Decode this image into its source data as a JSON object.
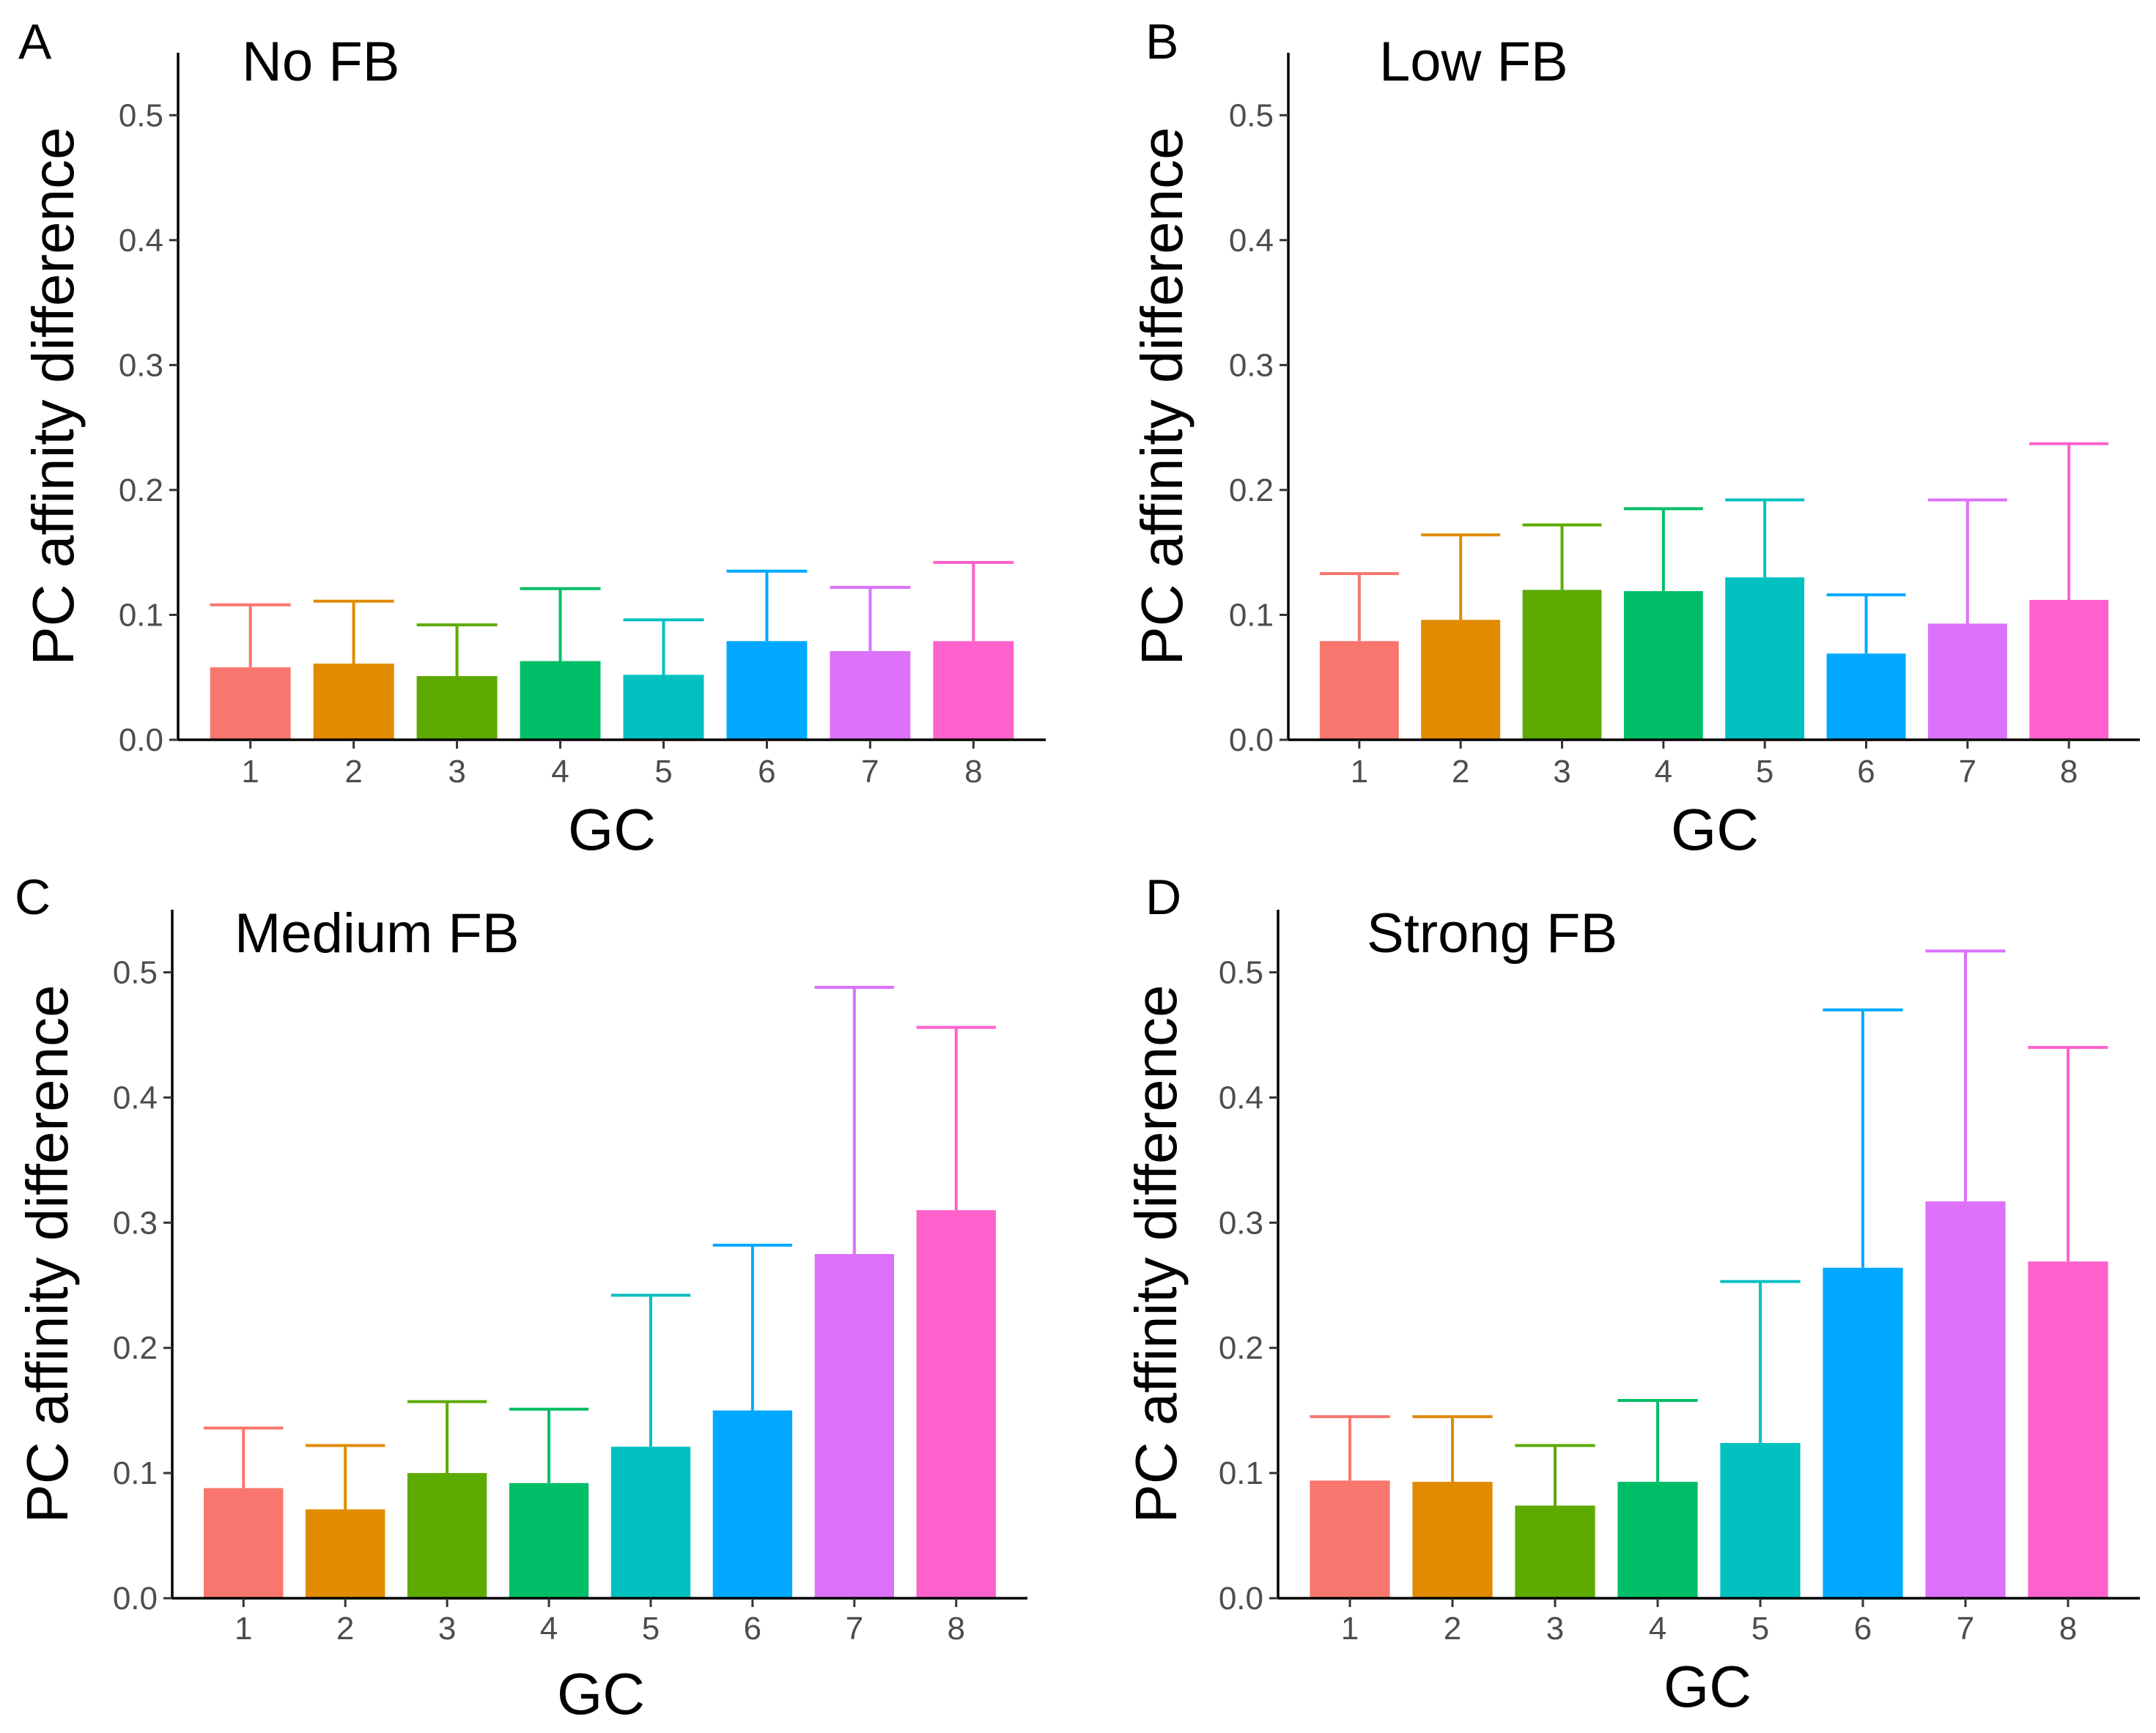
{
  "figure": {
    "caption_hidden": ""
  },
  "chart_data": [
    {
      "type": "bar",
      "panel_letter": "A",
      "title": "No FB",
      "xlabel": "GC",
      "ylabel": "PC affinity difference",
      "categories": [
        "1",
        "2",
        "3",
        "4",
        "5",
        "6",
        "7",
        "8"
      ],
      "values": [
        0.058,
        0.061,
        0.051,
        0.063,
        0.052,
        0.079,
        0.071,
        0.079
      ],
      "error_upper": [
        0.108,
        0.111,
        0.092,
        0.121,
        0.096,
        0.135,
        0.122,
        0.142
      ],
      "ylim": [
        0,
        0.55
      ],
      "yticks": [
        0.0,
        0.1,
        0.2,
        0.3,
        0.4,
        0.5
      ],
      "ytick_labels": [
        "0.0",
        "0.1",
        "0.2",
        "0.3",
        "0.4",
        "0.5"
      ]
    },
    {
      "type": "bar",
      "panel_letter": "B",
      "title": "Low FB",
      "xlabel": "GC",
      "ylabel": "PC affinity difference",
      "categories": [
        "1",
        "2",
        "3",
        "4",
        "5",
        "6",
        "7",
        "8"
      ],
      "values": [
        0.079,
        0.096,
        0.12,
        0.119,
        0.13,
        0.069,
        0.093,
        0.112
      ],
      "error_upper": [
        0.133,
        0.164,
        0.172,
        0.185,
        0.192,
        0.116,
        0.192,
        0.237
      ],
      "ylim": [
        0,
        0.55
      ],
      "yticks": [
        0.0,
        0.1,
        0.2,
        0.3,
        0.4,
        0.5
      ],
      "ytick_labels": [
        "0.0",
        "0.1",
        "0.2",
        "0.3",
        "0.4",
        "0.5"
      ]
    },
    {
      "type": "bar",
      "panel_letter": "C",
      "title": "Medium FB",
      "xlabel": "GC",
      "ylabel": "PC affinity difference",
      "categories": [
        "1",
        "2",
        "3",
        "4",
        "5",
        "6",
        "7",
        "8"
      ],
      "values": [
        0.088,
        0.071,
        0.1,
        0.092,
        0.121,
        0.15,
        0.275,
        0.31
      ],
      "error_upper": [
        0.136,
        0.122,
        0.157,
        0.151,
        0.242,
        0.282,
        0.488,
        0.456
      ],
      "ylim": [
        0,
        0.55
      ],
      "yticks": [
        0.0,
        0.1,
        0.2,
        0.3,
        0.4,
        0.5
      ],
      "ytick_labels": [
        "0.0",
        "0.1",
        "0.2",
        "0.3",
        "0.4",
        "0.5"
      ]
    },
    {
      "type": "bar",
      "panel_letter": "D",
      "title": "Strong FB",
      "xlabel": "GC",
      "ylabel": "PC affinity difference",
      "categories": [
        "1",
        "2",
        "3",
        "4",
        "5",
        "6",
        "7",
        "8"
      ],
      "values": [
        0.094,
        0.093,
        0.074,
        0.093,
        0.124,
        0.264,
        0.317,
        0.269
      ],
      "error_upper": [
        0.145,
        0.145,
        0.122,
        0.158,
        0.253,
        0.47,
        0.517,
        0.44
      ],
      "ylim": [
        0,
        0.55
      ],
      "yticks": [
        0.0,
        0.1,
        0.2,
        0.3,
        0.4,
        0.5
      ],
      "ytick_labels": [
        "0.0",
        "0.1",
        "0.2",
        "0.3",
        "0.4",
        "0.5"
      ]
    }
  ],
  "colors": [
    "#F8766D",
    "#E08B00",
    "#5DAA00",
    "#00BE67",
    "#00C0C0",
    "#00A9FF",
    "#DC71FA",
    "#FF61CC"
  ]
}
